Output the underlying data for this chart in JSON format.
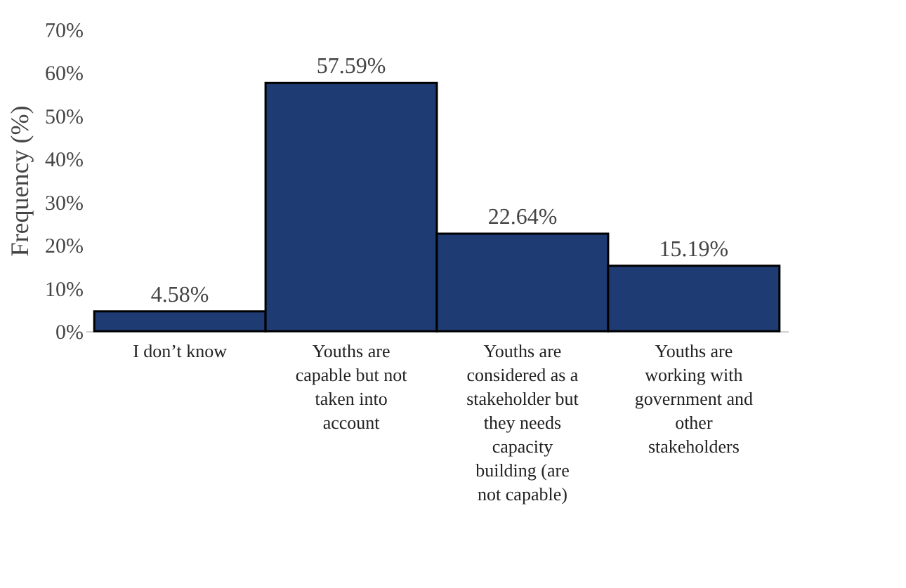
{
  "chart_data": {
    "type": "bar",
    "ylabel": "Frequency (%)",
    "categories": [
      "I don’t know",
      "Youths are capable but not taken into account",
      "Youths are considered as a stakeholder but they needs capacity building (are not capable)",
      "Youths are working with government and other stakeholders"
    ],
    "values": [
      4.58,
      57.59,
      22.64,
      15.19
    ],
    "value_labels": [
      "4.58%",
      "57.59%",
      "22.64%",
      "15.19%"
    ],
    "color": "#1f3b73",
    "ylim": [
      0,
      70
    ],
    "yticks": [
      {
        "value": 0,
        "label": "0%"
      },
      {
        "value": 10,
        "label": "10%"
      },
      {
        "value": 20,
        "label": "20%"
      },
      {
        "value": 30,
        "label": "30%"
      },
      {
        "value": 40,
        "label": "40%"
      },
      {
        "value": 50,
        "label": "50%"
      },
      {
        "value": 60,
        "label": "60%"
      },
      {
        "value": 70,
        "label": "70%"
      }
    ],
    "grid": false
  }
}
